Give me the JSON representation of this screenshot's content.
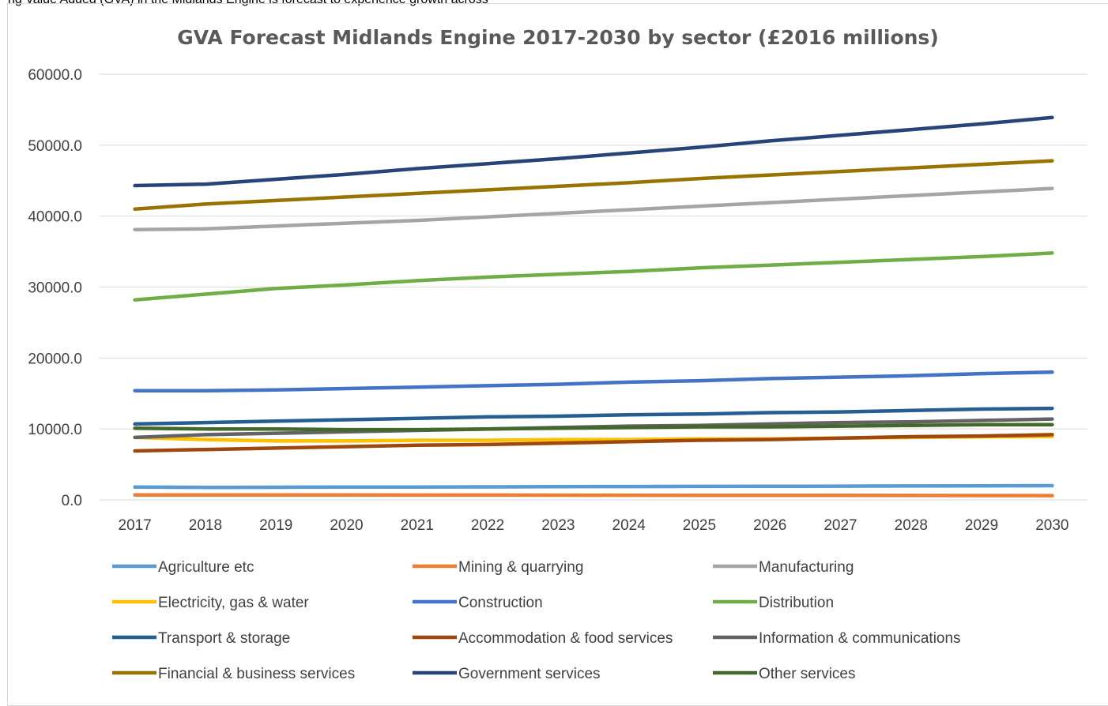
{
  "caption": "ng Value Added (GVA) in the Midlands Engine is forecast to experience growth across",
  "chart_data": {
    "type": "line",
    "title": "GVA Forecast Midlands Engine 2017-2030 by sector (£2016 millions)",
    "xlabel": "",
    "ylabel": "",
    "ylim": [
      0,
      60000
    ],
    "y_ticks": [
      "0.0",
      "10000.0",
      "20000.0",
      "30000.0",
      "40000.0",
      "50000.0",
      "60000.0"
    ],
    "grid": true,
    "legend_position": "bottom",
    "x": [
      "2017",
      "2018",
      "2019",
      "2020",
      "2021",
      "2022",
      "2023",
      "2024",
      "2025",
      "2026",
      "2027",
      "2028",
      "2029",
      "2030"
    ],
    "series": [
      {
        "name": "Agriculture etc",
        "color": "#5b9bd5",
        "values": [
          1800,
          1760,
          1780,
          1800,
          1820,
          1840,
          1860,
          1880,
          1900,
          1920,
          1940,
          1960,
          1980,
          2000
        ]
      },
      {
        "name": "Mining & quarrying",
        "color": "#ed7d31",
        "values": [
          700,
          690,
          690,
          690,
          680,
          680,
          670,
          660,
          650,
          640,
          630,
          620,
          610,
          600
        ]
      },
      {
        "name": "Manufacturing",
        "color": "#a5a5a5",
        "values": [
          38100,
          38200,
          38600,
          39000,
          39400,
          39900,
          40400,
          40900,
          41400,
          41900,
          42400,
          42900,
          43400,
          43900
        ]
      },
      {
        "name": "Electricity, gas & water",
        "color": "#ffc000",
        "values": [
          8800,
          8500,
          8300,
          8300,
          8400,
          8400,
          8500,
          8500,
          8600,
          8600,
          8700,
          8800,
          8900,
          8950
        ]
      },
      {
        "name": "Construction",
        "color": "#4472c4",
        "values": [
          15400,
          15400,
          15500,
          15700,
          15900,
          16100,
          16300,
          16600,
          16800,
          17100,
          17300,
          17500,
          17800,
          18000
        ]
      },
      {
        "name": "Distribution",
        "color": "#70ad47",
        "values": [
          28200,
          29000,
          29800,
          30300,
          30900,
          31400,
          31800,
          32200,
          32700,
          33100,
          33500,
          33900,
          34300,
          34800
        ]
      },
      {
        "name": "Transport & storage",
        "color": "#255e91",
        "values": [
          10700,
          10900,
          11100,
          11300,
          11500,
          11700,
          11800,
          12000,
          12100,
          12300,
          12400,
          12600,
          12800,
          12900
        ]
      },
      {
        "name": "Accommodation & food services",
        "color": "#9e480e",
        "values": [
          6900,
          7100,
          7300,
          7500,
          7700,
          7800,
          8000,
          8200,
          8400,
          8500,
          8700,
          8900,
          9000,
          9200
        ]
      },
      {
        "name": "Information & communications",
        "color": "#636363",
        "values": [
          8800,
          9200,
          9400,
          9600,
          9800,
          10000,
          10200,
          10400,
          10500,
          10700,
          10900,
          11000,
          11200,
          11400
        ]
      },
      {
        "name": "Financial & business services",
        "color": "#997300",
        "values": [
          41000,
          41700,
          42200,
          42700,
          43200,
          43700,
          44200,
          44700,
          45300,
          45800,
          46300,
          46800,
          47300,
          47800
        ]
      },
      {
        "name": "Government services",
        "color": "#264478",
        "values": [
          44300,
          44500,
          45200,
          45900,
          46700,
          47400,
          48100,
          48900,
          49700,
          50600,
          51400,
          52200,
          53000,
          53900
        ]
      },
      {
        "name": "Other services",
        "color": "#43682b",
        "values": [
          10100,
          10000,
          10000,
          9900,
          9900,
          10000,
          10100,
          10200,
          10300,
          10300,
          10400,
          10500,
          10600,
          10600
        ]
      }
    ]
  }
}
